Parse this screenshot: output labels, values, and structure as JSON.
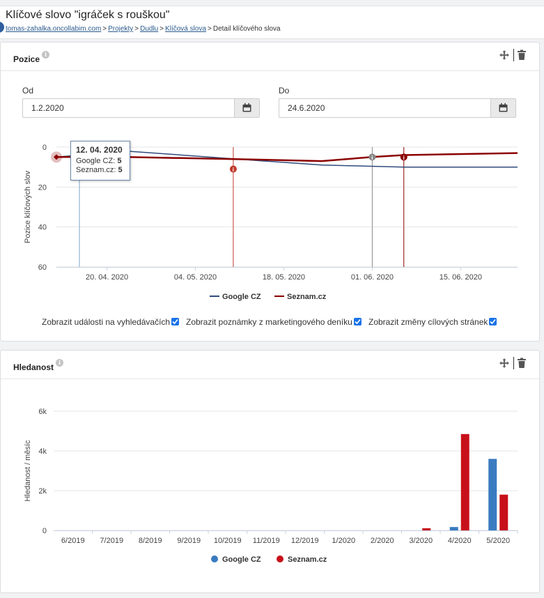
{
  "header": {
    "title": "Klíčové slovo \"igráček s rouškou\"",
    "breadcrumb": {
      "root": "tomas-zahalka.oncollabim.com",
      "projects": "Projekty",
      "project": "Dudlu",
      "keywords": "Klíčová slova",
      "current": "Detail klíčového slova",
      "separator": ">"
    }
  },
  "position_panel": {
    "title": "Pozice",
    "from_label": "Od",
    "from_value": "1.2.2020",
    "to_label": "Do",
    "to_value": "24.6.2020",
    "checkboxes": [
      {
        "label": "Zobrazit události na vyhledávačích",
        "checked": true
      },
      {
        "label": "Zobrazit poznámky z marketingového deníku",
        "checked": true
      },
      {
        "label": "Zobrazit změny cílových stránek",
        "checked": true
      }
    ],
    "tooltip": {
      "date": "12. 04. 2020",
      "rows": [
        {
          "label": "Google CZ:",
          "value": "5"
        },
        {
          "label": "Seznam.cz:",
          "value": "5"
        }
      ]
    }
  },
  "search_panel": {
    "title": "Hledanost"
  },
  "colors": {
    "google_line": "#2f4b7c",
    "seznam_line": "#8b0000",
    "google_bar": "#3a7bc0",
    "seznam_bar": "#c8101a",
    "grid": "#e6e6e6"
  },
  "chart_data": [
    {
      "type": "line",
      "ylabel": "Pozice klíčových slov",
      "y_reversed": true,
      "ylim": [
        0,
        60
      ],
      "yticks": [
        "0",
        "20",
        "40",
        "60"
      ],
      "xticks": [
        "20. 04. 2020",
        "04. 05. 2020",
        "18. 05. 2020",
        "01. 06. 2020",
        "15. 06. 2020"
      ],
      "xlim": [
        "2020-04-12",
        "2020-06-24"
      ],
      "series": [
        {
          "name": "Google CZ",
          "points": [
            [
              "2020-04-12",
              5
            ],
            [
              "2020-04-20",
              3
            ],
            [
              "2020-04-23",
              2
            ],
            [
              "2020-05-15",
              7
            ],
            [
              "2020-05-24",
              9
            ],
            [
              "2020-06-06",
              10
            ],
            [
              "2020-06-24",
              10
            ]
          ]
        },
        {
          "name": "Seznam.cz",
          "points": [
            [
              "2020-04-12",
              5
            ],
            [
              "2020-04-23",
              5
            ],
            [
              "2020-05-10",
              6
            ],
            [
              "2020-05-24",
              7
            ],
            [
              "2020-06-01",
              5
            ],
            [
              "2020-06-06",
              4
            ],
            [
              "2020-06-24",
              3
            ]
          ]
        }
      ],
      "events": [
        {
          "date": "2020-05-10",
          "color": "#c0392b"
        },
        {
          "date": "2020-06-01",
          "color": "#888888"
        },
        {
          "date": "2020-06-06",
          "color": "#8b0000"
        }
      ],
      "legend": "bottom-center",
      "grid": true
    },
    {
      "type": "bar",
      "ylabel": "Hledanost / měsíc",
      "ylim": [
        0,
        6000
      ],
      "yticks": [
        "0",
        "2k",
        "4k",
        "6k"
      ],
      "categories": [
        "6/2019",
        "7/2019",
        "8/2019",
        "9/2019",
        "10/2019",
        "11/2019",
        "12/2019",
        "1/2020",
        "2/2020",
        "3/2020",
        "4/2020",
        "5/2020"
      ],
      "series": [
        {
          "name": "Google CZ",
          "values": [
            0,
            0,
            0,
            0,
            0,
            0,
            0,
            0,
            0,
            0,
            170,
            3600
          ]
        },
        {
          "name": "Seznam.cz",
          "values": [
            0,
            0,
            0,
            0,
            0,
            0,
            0,
            0,
            0,
            110,
            4850,
            1800
          ]
        }
      ],
      "legend": "bottom-center",
      "grid": true
    }
  ]
}
